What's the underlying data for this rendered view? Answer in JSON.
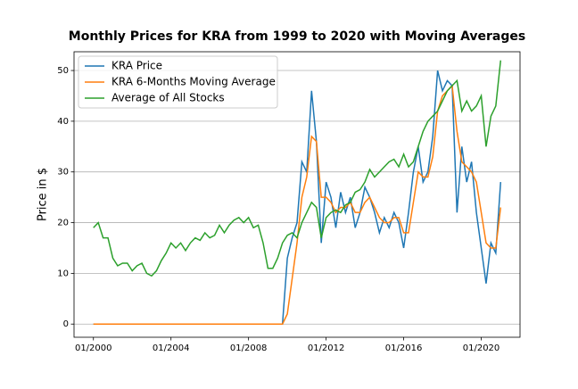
{
  "chart_data": {
    "type": "line",
    "title": "Monthly Prices for KRA from 1999 to 2020 with Moving Averages",
    "y_label": "Price in $",
    "x": [
      "01/2000",
      "04/2000",
      "07/2000",
      "10/2000",
      "01/2001",
      "04/2001",
      "07/2001",
      "10/2001",
      "01/2002",
      "04/2002",
      "07/2002",
      "10/2002",
      "01/2003",
      "04/2003",
      "07/2003",
      "10/2003",
      "01/2004",
      "04/2004",
      "07/2004",
      "10/2004",
      "01/2005",
      "04/2005",
      "07/2005",
      "10/2005",
      "01/2006",
      "04/2006",
      "07/2006",
      "10/2006",
      "01/2007",
      "04/2007",
      "07/2007",
      "10/2007",
      "01/2008",
      "04/2008",
      "07/2008",
      "10/2008",
      "01/2009",
      "04/2009",
      "07/2009",
      "10/2009",
      "01/2010",
      "04/2010",
      "07/2010",
      "10/2010",
      "01/2011",
      "04/2011",
      "07/2011",
      "10/2011",
      "01/2012",
      "04/2012",
      "07/2012",
      "10/2012",
      "01/2013",
      "04/2013",
      "07/2013",
      "10/2013",
      "01/2014",
      "04/2014",
      "07/2014",
      "10/2014",
      "01/2015",
      "04/2015",
      "07/2015",
      "10/2015",
      "01/2016",
      "04/2016",
      "07/2016",
      "10/2016",
      "01/2017",
      "04/2017",
      "07/2017",
      "10/2017",
      "01/2018",
      "04/2018",
      "07/2018",
      "10/2018",
      "01/2019",
      "04/2019",
      "07/2019",
      "10/2019",
      "01/2020",
      "04/2020",
      "07/2020",
      "10/2020",
      "01/2021"
    ],
    "series": [
      {
        "name": "KRA Price",
        "color": "#1f77b4",
        "values": [
          0,
          0,
          0,
          0,
          0,
          0,
          0,
          0,
          0,
          0,
          0,
          0,
          0,
          0,
          0,
          0,
          0,
          0,
          0,
          0,
          0,
          0,
          0,
          0,
          0,
          0,
          0,
          0,
          0,
          0,
          0,
          0,
          0,
          0,
          0,
          0,
          0,
          0,
          0,
          0,
          13,
          17,
          20,
          32,
          30,
          46,
          36,
          16,
          28,
          25,
          19,
          26,
          22,
          25,
          19,
          22,
          27,
          25,
          22,
          18,
          21,
          19,
          22,
          20,
          15,
          22,
          30,
          35,
          28,
          30,
          37,
          50,
          46,
          48,
          47,
          22,
          35,
          28,
          32,
          22,
          15,
          8,
          16,
          14,
          28
        ]
      },
      {
        "name": "KRA 6-Months Moving Average",
        "color": "#ff7f0e",
        "values": [
          0,
          0,
          0,
          0,
          0,
          0,
          0,
          0,
          0,
          0,
          0,
          0,
          0,
          0,
          0,
          0,
          0,
          0,
          0,
          0,
          0,
          0,
          0,
          0,
          0,
          0,
          0,
          0,
          0,
          0,
          0,
          0,
          0,
          0,
          0,
          0,
          0,
          0,
          0,
          0,
          2,
          9,
          16,
          25,
          29,
          37,
          36,
          25,
          25,
          24,
          22,
          23,
          23,
          24,
          22,
          22,
          24,
          25,
          23,
          21,
          20,
          20,
          21,
          21,
          18,
          18,
          24,
          30,
          29,
          29,
          33,
          42,
          45,
          46,
          47,
          38,
          32,
          31,
          30,
          28,
          22,
          16,
          15,
          15,
          23
        ]
      },
      {
        "name": "Average of All Stocks",
        "color": "#2ca02c",
        "values": [
          19,
          20,
          17,
          17,
          13,
          11.5,
          12,
          12,
          10.5,
          11.5,
          12,
          10,
          9.5,
          10.5,
          12.5,
          14,
          16,
          15,
          16,
          14.5,
          16,
          17,
          16.5,
          18,
          17,
          17.5,
          19.5,
          18,
          19.5,
          20.5,
          21,
          20,
          21,
          19,
          19.5,
          16,
          11,
          11,
          13,
          16,
          17.5,
          18,
          17,
          20,
          22,
          24,
          23,
          17,
          21,
          22,
          22.5,
          22,
          23.5,
          24,
          26,
          26.5,
          28,
          30.5,
          29,
          30,
          31,
          32,
          32.5,
          31,
          33.5,
          31,
          32,
          35,
          38,
          40,
          41,
          42,
          44,
          46,
          47,
          48,
          42,
          44,
          42,
          43,
          45,
          35,
          41,
          43,
          52
        ]
      }
    ],
    "xlim": [
      "01/1999",
      "01/2022"
    ],
    "xticks": [
      "01/2000",
      "01/2004",
      "01/2008",
      "01/2012",
      "01/2016",
      "01/2020"
    ],
    "ylim": [
      -2.6,
      53.7
    ],
    "yticks": [
      0,
      10,
      20,
      30,
      40,
      50
    ],
    "grid": true,
    "legend": "upper-left"
  }
}
